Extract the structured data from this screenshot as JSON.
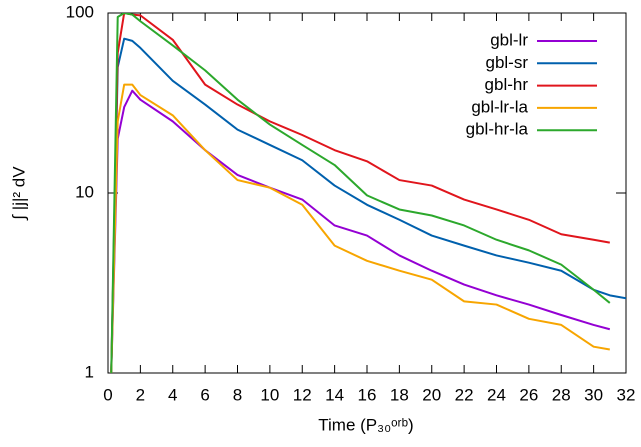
{
  "chart_data": {
    "type": "line",
    "xlabel": "Time (P₃₀ᵒʳᵇ)",
    "ylabel": "∫ |j|² dV",
    "x": [
      0.2,
      0.6,
      1,
      1.5,
      2,
      4,
      6,
      8,
      10,
      12,
      14,
      16,
      18,
      20,
      22,
      24,
      26,
      28,
      30,
      31,
      32
    ],
    "series": [
      {
        "name": "gbl-lr",
        "color": "#9400d3",
        "values": [
          1,
          20,
          30,
          37,
          33,
          25,
          17.3,
          12.6,
          10.7,
          9.2,
          6.6,
          5.8,
          4.5,
          3.7,
          3.1,
          2.7,
          2.4,
          2.1,
          1.85,
          1.75,
          null
        ]
      },
      {
        "name": "gbl-sr",
        "color": "#0060ad",
        "values": [
          1,
          50,
          72,
          70,
          64,
          42,
          31,
          22.5,
          18.5,
          15.2,
          11,
          8.6,
          7.1,
          5.8,
          5.1,
          4.5,
          4.1,
          3.7,
          2.9,
          2.7,
          2.6
        ]
      },
      {
        "name": "gbl-hr",
        "color": "#e0151c",
        "values": [
          1,
          60,
          100,
          98,
          97,
          71,
          40,
          31,
          25,
          21,
          17.3,
          15,
          11.8,
          11,
          9.2,
          8.1,
          7.1,
          5.9,
          5.5,
          5.3,
          null
        ]
      },
      {
        "name": "gbl-lr-la",
        "color": "#f7a500",
        "values": [
          1,
          25,
          40,
          40,
          35,
          27,
          17.3,
          11.8,
          10.7,
          8.6,
          5.1,
          4.2,
          3.7,
          3.3,
          2.5,
          2.4,
          2.0,
          1.85,
          1.4,
          1.35,
          null
        ]
      },
      {
        "name": "gbl-hr-la",
        "color": "#2ca82c",
        "values": [
          1,
          95,
          100,
          98,
          90,
          66,
          48,
          33,
          24,
          18.5,
          14.3,
          9.7,
          8.1,
          7.5,
          6.6,
          5.5,
          4.8,
          4.0,
          2.9,
          2.45,
          null
        ]
      }
    ],
    "xlim": [
      0,
      32
    ],
    "xticks": [
      0,
      2,
      4,
      6,
      8,
      10,
      12,
      14,
      16,
      18,
      20,
      22,
      24,
      26,
      28,
      30,
      32
    ],
    "ylim": [
      1,
      100
    ],
    "yticks": [
      1,
      10,
      100
    ],
    "ylog": true,
    "legend": "top-right"
  }
}
